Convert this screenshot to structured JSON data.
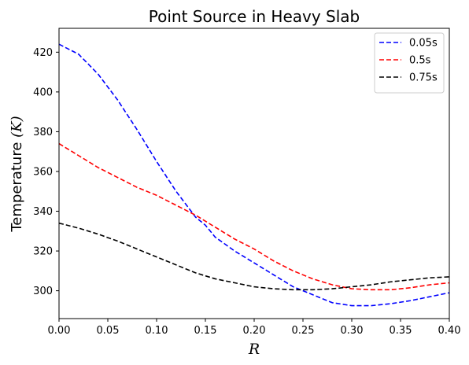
{
  "chart_data": {
    "type": "line",
    "title": "Point Source in Heavy Slab",
    "xlabel": "R",
    "ylabel_text": "Temperature ",
    "ylabel_math": "(K)",
    "xlim": [
      0.0,
      0.4
    ],
    "ylim": [
      286,
      432
    ],
    "xticks": [
      0.0,
      0.05,
      0.1,
      0.15,
      0.2,
      0.25,
      0.3,
      0.35,
      0.4
    ],
    "xtick_labels": [
      "0.00",
      "0.05",
      "0.10",
      "0.15",
      "0.20",
      "0.25",
      "0.30",
      "0.35",
      "0.40"
    ],
    "yticks": [
      300,
      320,
      340,
      360,
      380,
      400,
      420
    ],
    "ytick_labels": [
      "300",
      "320",
      "340",
      "360",
      "380",
      "400",
      "420"
    ],
    "grid": false,
    "legend_position": "top-right",
    "line_style": "dashed",
    "series": [
      {
        "name": "0.05s",
        "color": "#0000ff",
        "x": [
          0.0,
          0.02,
          0.04,
          0.06,
          0.08,
          0.1,
          0.12,
          0.14,
          0.15,
          0.16,
          0.18,
          0.2,
          0.22,
          0.24,
          0.26,
          0.28,
          0.3,
          0.32,
          0.34,
          0.36,
          0.38,
          0.4
        ],
        "y": [
          424,
          419,
          409,
          396,
          381,
          365,
          350,
          337,
          333,
          327,
          320,
          314,
          308,
          302,
          298,
          294,
          292.5,
          292.5,
          293.5,
          295,
          297,
          299
        ]
      },
      {
        "name": "0.5s",
        "color": "#ff0000",
        "x": [
          0.0,
          0.02,
          0.04,
          0.06,
          0.08,
          0.1,
          0.12,
          0.14,
          0.16,
          0.18,
          0.2,
          0.22,
          0.24,
          0.26,
          0.28,
          0.3,
          0.32,
          0.34,
          0.36,
          0.38,
          0.4
        ],
        "y": [
          374,
          368,
          362,
          357,
          352,
          348,
          343,
          338,
          332,
          326,
          321,
          315,
          310,
          306,
          303,
          301,
          300.5,
          300.5,
          301.5,
          303,
          304
        ]
      },
      {
        "name": "0.75s",
        "color": "#000000",
        "x": [
          0.0,
          0.02,
          0.04,
          0.06,
          0.08,
          0.1,
          0.12,
          0.14,
          0.16,
          0.18,
          0.2,
          0.22,
          0.24,
          0.26,
          0.28,
          0.3,
          0.32,
          0.34,
          0.36,
          0.38,
          0.4
        ],
        "y": [
          334,
          331.5,
          328.5,
          325,
          321,
          317,
          313,
          309,
          306,
          304,
          302,
          301,
          300.5,
          300.5,
          301,
          302,
          303,
          304.5,
          305.5,
          306.5,
          307
        ]
      }
    ]
  }
}
